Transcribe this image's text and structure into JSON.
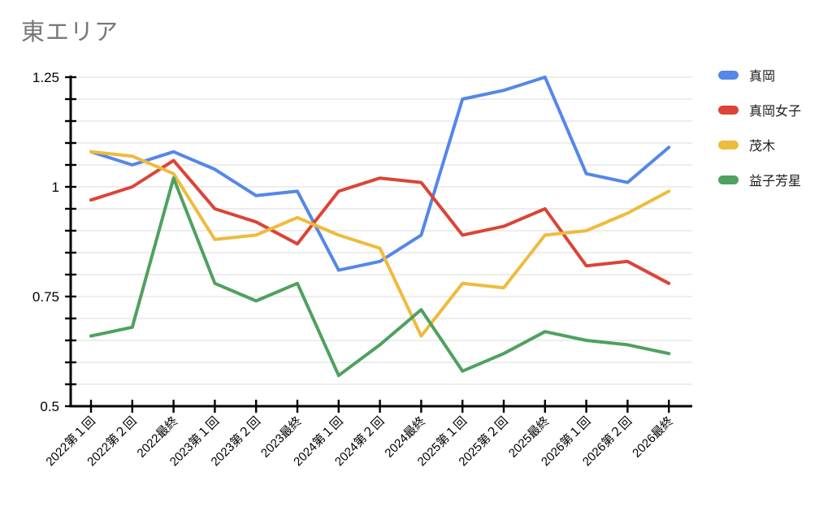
{
  "chart_data": {
    "type": "line",
    "title": "東エリア",
    "categories": [
      "2022第１回",
      "2022第２回",
      "2022最終",
      "2023第１回",
      "2023第２回",
      "2023最終",
      "2024第１回",
      "2024第２回",
      "2024最終",
      "2025第１回",
      "2025第２回",
      "2025最終",
      "2026第１回",
      "2026第２回",
      "2026最終"
    ],
    "series": [
      {
        "name": "真岡",
        "color": "#5487E8",
        "values": [
          1.08,
          1.05,
          1.08,
          1.04,
          0.98,
          0.99,
          0.81,
          0.83,
          0.89,
          1.2,
          1.22,
          1.25,
          1.03,
          1.01,
          1.09
        ]
      },
      {
        "name": "真岡女子",
        "color": "#DB4437",
        "values": [
          0.97,
          1.0,
          1.06,
          0.95,
          0.92,
          0.87,
          0.99,
          1.02,
          1.01,
          0.89,
          0.91,
          0.95,
          0.82,
          0.83,
          0.78
        ]
      },
      {
        "name": "茂木",
        "color": "#EEBB3C",
        "values": [
          1.08,
          1.07,
          1.03,
          0.88,
          0.89,
          0.93,
          0.89,
          0.86,
          0.66,
          0.78,
          0.77,
          0.89,
          0.9,
          0.94,
          0.99
        ]
      },
      {
        "name": "益子芳星",
        "color": "#4EA15F",
        "values": [
          0.66,
          0.68,
          1.02,
          0.78,
          0.74,
          0.78,
          0.57,
          0.64,
          0.72,
          0.58,
          0.62,
          0.67,
          0.65,
          0.64,
          0.62
        ]
      }
    ],
    "y_axis": {
      "min": 0.5,
      "max": 1.25,
      "tick_step": 0.05,
      "labels": [
        "1.25",
        "1",
        "0.75",
        "0.5"
      ],
      "label_values": [
        1.25,
        1,
        0.75,
        0.5
      ]
    },
    "x_axis": {
      "label_rotation_deg": -45
    },
    "grid": true,
    "legend_position": "right",
    "colors": {
      "title": "#777777",
      "axis": "#000000",
      "gridline": "#e7e7e7"
    }
  }
}
